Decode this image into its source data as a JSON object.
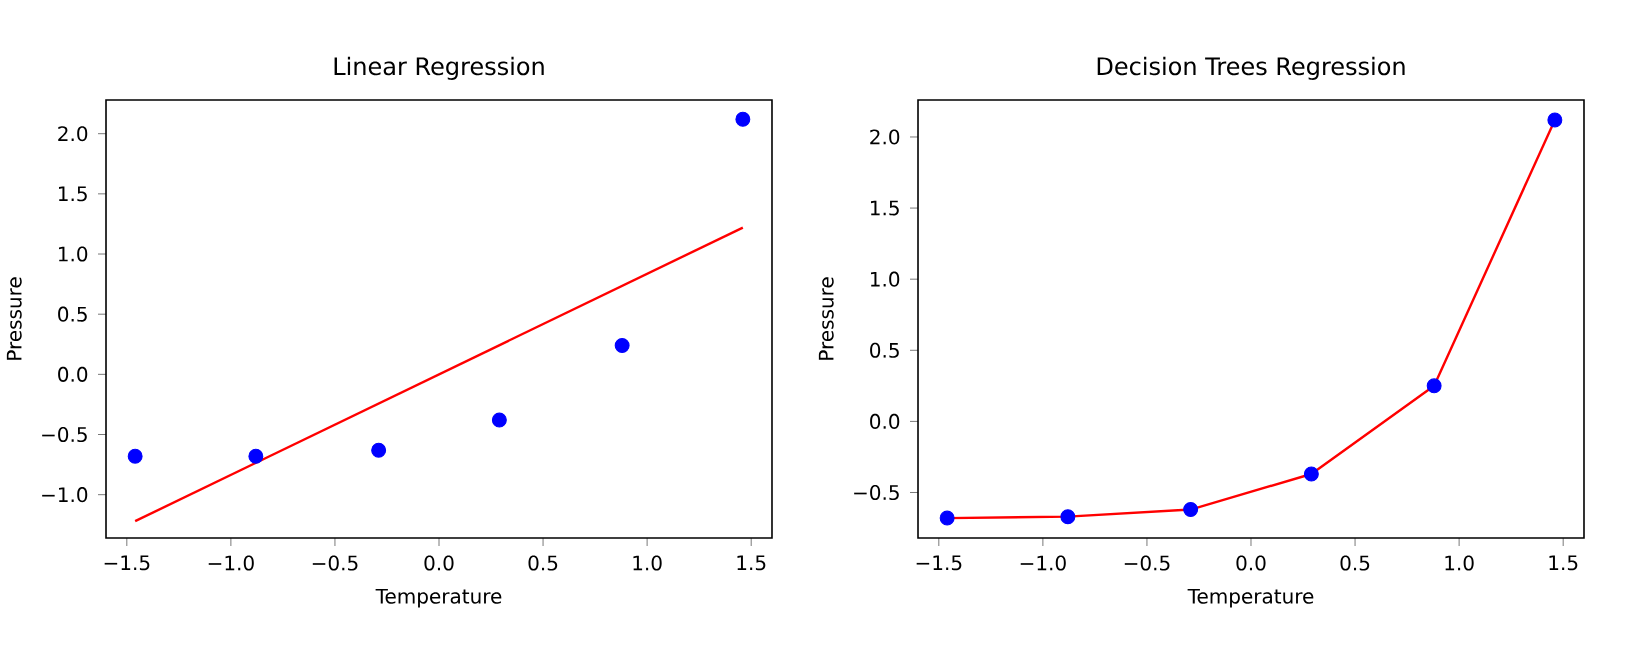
{
  "chart_data": [
    {
      "type": "scatter",
      "title": "Linear Regression",
      "xlabel": "Temperature",
      "ylabel": "Pressure",
      "xlim": [
        -1.6,
        1.6
      ],
      "ylim": [
        -1.36,
        2.28
      ],
      "xticks": [
        {
          "value": -1.5,
          "label": "−1.5"
        },
        {
          "value": -1.0,
          "label": "−1.0"
        },
        {
          "value": -0.5,
          "label": "−0.5"
        },
        {
          "value": 0.0,
          "label": "0.0"
        },
        {
          "value": 0.5,
          "label": "0.5"
        },
        {
          "value": 1.0,
          "label": "1.0"
        },
        {
          "value": 1.5,
          "label": "1.5"
        }
      ],
      "yticks": [
        {
          "value": -1.0,
          "label": "−1.0"
        },
        {
          "value": -0.5,
          "label": "−0.5"
        },
        {
          "value": 0.0,
          "label": "0.0"
        },
        {
          "value": 0.5,
          "label": "0.5"
        },
        {
          "value": 1.0,
          "label": "1.0"
        },
        {
          "value": 1.5,
          "label": "1.5"
        },
        {
          "value": 2.0,
          "label": "2.0"
        }
      ],
      "grid": false,
      "marker": "circle",
      "series": [
        {
          "color": "#0000ff",
          "x": [
            -1.46,
            -0.88,
            -0.29,
            0.29,
            0.88,
            1.46
          ],
          "values": [
            -0.68,
            -0.68,
            -0.63,
            -0.38,
            0.24,
            2.12
          ]
        },
        {
          "type": "line",
          "color": "#ff0000",
          "marker": "none",
          "line_style": "solid",
          "x": [
            -1.46,
            1.46
          ],
          "values": [
            -1.22,
            1.22
          ]
        }
      ]
    },
    {
      "type": "scatter",
      "title": "Decision Trees Regression",
      "xlabel": "Temperature",
      "ylabel": "Pressure",
      "xlim": [
        -1.6,
        1.6
      ],
      "ylim": [
        -0.82,
        2.26
      ],
      "xticks": [
        {
          "value": -1.5,
          "label": "−1.5"
        },
        {
          "value": -1.0,
          "label": "−1.0"
        },
        {
          "value": -0.5,
          "label": "−0.5"
        },
        {
          "value": 0.0,
          "label": "0.0"
        },
        {
          "value": 0.5,
          "label": "0.5"
        },
        {
          "value": 1.0,
          "label": "1.0"
        },
        {
          "value": 1.5,
          "label": "1.5"
        }
      ],
      "yticks": [
        {
          "value": -0.5,
          "label": "−0.5"
        },
        {
          "value": 0.0,
          "label": "0.0"
        },
        {
          "value": 0.5,
          "label": "0.5"
        },
        {
          "value": 1.0,
          "label": "1.0"
        },
        {
          "value": 1.5,
          "label": "1.5"
        },
        {
          "value": 2.0,
          "label": "2.0"
        }
      ],
      "grid": false,
      "marker": "circle",
      "series": [
        {
          "color": "#0000ff",
          "x": [
            -1.46,
            -0.88,
            -0.29,
            0.29,
            0.88,
            1.46
          ],
          "values": [
            -0.68,
            -0.67,
            -0.62,
            -0.37,
            0.25,
            2.12
          ]
        },
        {
          "type": "line",
          "color": "#ff0000",
          "marker": "none",
          "line_style": "solid",
          "x": [
            -1.46,
            -0.88,
            -0.29,
            0.29,
            0.88,
            1.46
          ],
          "values": [
            -0.68,
            -0.67,
            -0.62,
            -0.37,
            0.25,
            2.12
          ]
        }
      ]
    }
  ]
}
